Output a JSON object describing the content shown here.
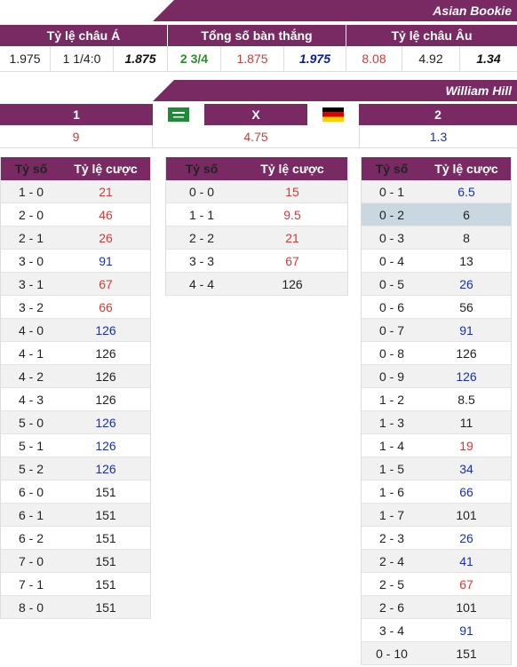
{
  "asian_bookie": {
    "title": "Asian Bookie",
    "headers": [
      "Tỷ lệ châu Á",
      "Tổng số bàn thắng",
      "Tỷ lệ châu Âu"
    ],
    "values": [
      {
        "text": "1.975",
        "style": "dark"
      },
      {
        "text": "1 1/4:0",
        "style": "dark"
      },
      {
        "text": "1.875",
        "style": "bold-it"
      },
      {
        "text": "2 3/4",
        "style": "green"
      },
      {
        "text": "1.875",
        "style": "red"
      },
      {
        "text": "1.975",
        "style": "bluebold"
      },
      {
        "text": "8.08",
        "style": "red"
      },
      {
        "text": "4.92",
        "style": "dark"
      },
      {
        "text": "1.34",
        "style": "bold-it"
      }
    ]
  },
  "william_hill": {
    "title": "William Hill",
    "home_label": "1",
    "draw_label": "X",
    "away_label": "2",
    "home_flag": "saudi-arabia-flag",
    "away_flag": "germany-flag",
    "home_odds": "9",
    "draw_odds": "4.75",
    "away_odds": "1.3"
  },
  "score_tables": {
    "col_score": "Tỷ số",
    "col_odds": "Tỷ lệ cược",
    "home_wins": [
      {
        "score": "1 - 0",
        "odds": "21",
        "color": "red"
      },
      {
        "score": "2 - 0",
        "odds": "46",
        "color": "red"
      },
      {
        "score": "2 - 1",
        "odds": "26",
        "color": "red"
      },
      {
        "score": "3 - 0",
        "odds": "91",
        "color": "blue"
      },
      {
        "score": "3 - 1",
        "odds": "67",
        "color": "red"
      },
      {
        "score": "3 - 2",
        "odds": "66",
        "color": "red"
      },
      {
        "score": "4 - 0",
        "odds": "126",
        "color": "blue"
      },
      {
        "score": "4 - 1",
        "odds": "126",
        "color": "dark"
      },
      {
        "score": "4 - 2",
        "odds": "126",
        "color": "dark"
      },
      {
        "score": "4 - 3",
        "odds": "126",
        "color": "dark"
      },
      {
        "score": "5 - 0",
        "odds": "126",
        "color": "blue"
      },
      {
        "score": "5 - 1",
        "odds": "126",
        "color": "blue"
      },
      {
        "score": "5 - 2",
        "odds": "126",
        "color": "blue"
      },
      {
        "score": "6 - 0",
        "odds": "151",
        "color": "dark"
      },
      {
        "score": "6 - 1",
        "odds": "151",
        "color": "dark"
      },
      {
        "score": "6 - 2",
        "odds": "151",
        "color": "dark"
      },
      {
        "score": "7 - 0",
        "odds": "151",
        "color": "dark"
      },
      {
        "score": "7 - 1",
        "odds": "151",
        "color": "dark"
      },
      {
        "score": "8 - 0",
        "odds": "151",
        "color": "dark"
      }
    ],
    "draws": [
      {
        "score": "0 - 0",
        "odds": "15",
        "color": "red"
      },
      {
        "score": "1 - 1",
        "odds": "9.5",
        "color": "red"
      },
      {
        "score": "2 - 2",
        "odds": "21",
        "color": "red"
      },
      {
        "score": "3 - 3",
        "odds": "67",
        "color": "red"
      },
      {
        "score": "4 - 4",
        "odds": "126",
        "color": "dark"
      }
    ],
    "away_wins": [
      {
        "score": "0 - 1",
        "odds": "6.5",
        "color": "blue"
      },
      {
        "score": "0 - 2",
        "odds": "6",
        "color": "dark",
        "highlight": true
      },
      {
        "score": "0 - 3",
        "odds": "8",
        "color": "dark"
      },
      {
        "score": "0 - 4",
        "odds": "13",
        "color": "dark"
      },
      {
        "score": "0 - 5",
        "odds": "26",
        "color": "blue"
      },
      {
        "score": "0 - 6",
        "odds": "56",
        "color": "dark"
      },
      {
        "score": "0 - 7",
        "odds": "91",
        "color": "blue"
      },
      {
        "score": "0 - 8",
        "odds": "126",
        "color": "dark"
      },
      {
        "score": "0 - 9",
        "odds": "126",
        "color": "blue"
      },
      {
        "score": "1 - 2",
        "odds": "8.5",
        "color": "dark"
      },
      {
        "score": "1 - 3",
        "odds": "11",
        "color": "dark"
      },
      {
        "score": "1 - 4",
        "odds": "19",
        "color": "red"
      },
      {
        "score": "1 - 5",
        "odds": "34",
        "color": "blue"
      },
      {
        "score": "1 - 6",
        "odds": "66",
        "color": "blue"
      },
      {
        "score": "1 - 7",
        "odds": "101",
        "color": "dark"
      },
      {
        "score": "2 - 3",
        "odds": "26",
        "color": "blue"
      },
      {
        "score": "2 - 4",
        "odds": "41",
        "color": "blue"
      },
      {
        "score": "2 - 5",
        "odds": "67",
        "color": "red"
      },
      {
        "score": "2 - 6",
        "odds": "101",
        "color": "dark"
      },
      {
        "score": "3 - 4",
        "odds": "91",
        "color": "blue"
      },
      {
        "score": "0 - 10",
        "odds": "151",
        "color": "dark"
      }
    ]
  }
}
